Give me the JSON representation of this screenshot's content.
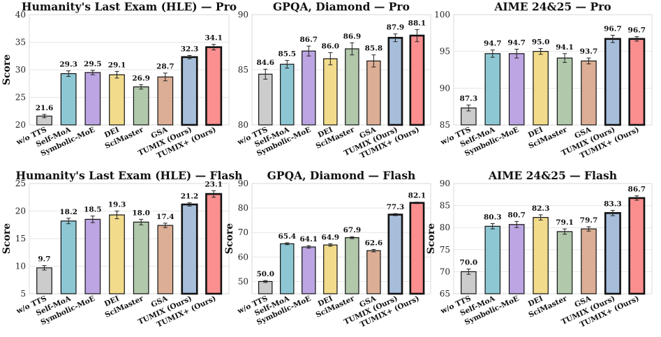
{
  "colors": {
    "w/o TTS": "#cccccc",
    "Self-MoA": "#8ec7d4",
    "Symbolic-MoE": "#bca5e2",
    "DEI": "#f2dc8c",
    "SciMaster": "#b1c8ab",
    "GSA": "#dcae95",
    "TUMIX (Ours)": "#a7bedb",
    "TUMIX+ (Ours)": "#fb8f8f"
  },
  "chart_data": [
    {
      "type": "bar",
      "title": "Humanity's Last Exam (HLE) — Pro",
      "ylabel": "Score",
      "ylim": [
        20,
        40
      ],
      "yticks": [
        20,
        25,
        30,
        35,
        40
      ],
      "categories": [
        "w/o TTS",
        "Self-MoA",
        "Symbolic-MoE",
        "DEI",
        "SciMaster",
        "GSA",
        "TUMIX (Ours)",
        "TUMIX+ (Ours)"
      ],
      "values": [
        21.6,
        29.3,
        29.5,
        29.1,
        26.9,
        28.7,
        32.3,
        34.1
      ],
      "labels": [
        "21.6",
        "29.3",
        "29.5",
        "29.1",
        "26.9",
        "28.7",
        "32.3",
        "34.1"
      ],
      "errors": [
        0.3,
        0.5,
        0.4,
        0.6,
        0.4,
        0.7,
        0.3,
        0.5
      ]
    },
    {
      "type": "bar",
      "title": "GPQA, Diamond — Pro",
      "ylabel": "",
      "ylim": [
        80,
        90
      ],
      "yticks": [
        80,
        85,
        90
      ],
      "categories": [
        "w/o TTS",
        "Self-MoA",
        "Symbolic-MoE",
        "DEI",
        "SciMaster",
        "GSA",
        "TUMIX (Ours)",
        "TUMIX+ (Ours)"
      ],
      "values": [
        84.6,
        85.5,
        86.7,
        86.0,
        86.9,
        85.8,
        87.9,
        88.1
      ],
      "labels": [
        "84.6",
        "85.5",
        "86.7",
        "86.0",
        "86.9",
        "85.8",
        "87.9",
        "88.1"
      ],
      "errors": [
        0.45,
        0.35,
        0.45,
        0.55,
        0.55,
        0.55,
        0.35,
        0.55
      ]
    },
    {
      "type": "bar",
      "title": "AIME 24&25 — Pro",
      "ylabel": "",
      "ylim": [
        85,
        100
      ],
      "yticks": [
        85,
        90,
        95,
        100
      ],
      "categories": [
        "w/o TTS",
        "Self-MoA",
        "Symbolic-MoE",
        "DEI",
        "SciMaster",
        "GSA",
        "TUMIX (Ours)",
        "TUMIX+ (Ours)"
      ],
      "values": [
        87.3,
        94.7,
        94.7,
        95.0,
        94.1,
        93.7,
        96.7,
        96.7
      ],
      "labels": [
        "87.3",
        "94.7",
        "94.7",
        "95.0",
        "94.1",
        "93.7",
        "96.7",
        "96.7"
      ],
      "errors": [
        0.4,
        0.5,
        0.6,
        0.4,
        0.6,
        0.4,
        0.5,
        0.3
      ]
    },
    {
      "type": "bar",
      "title": "Humanity's Last Exam (HLE) — Flash",
      "ylabel": "Score",
      "ylim": [
        5,
        25
      ],
      "yticks": [
        5,
        10,
        15,
        20,
        25
      ],
      "categories": [
        "w/o TTS",
        "Self-MoA",
        "Symbolic-MoE",
        "DEI",
        "SciMaster",
        "GSA",
        "TUMIX (Ours)",
        "TUMIX+ (Ours)"
      ],
      "values": [
        9.7,
        18.2,
        18.5,
        19.3,
        18.0,
        17.4,
        21.2,
        23.1
      ],
      "labels": [
        "9.7",
        "18.2",
        "18.5",
        "19.3",
        "18.0",
        "17.4",
        "21.2",
        "23.1"
      ],
      "errors": [
        0.4,
        0.5,
        0.6,
        0.7,
        0.5,
        0.4,
        0.3,
        0.6
      ]
    },
    {
      "type": "bar",
      "title": "GPQA, Diamond — Flash",
      "ylabel": "Score",
      "ylim": [
        45,
        90
      ],
      "yticks": [
        50,
        60,
        70,
        80,
        90
      ],
      "categories": [
        "w/o TTS",
        "Self-MoA",
        "Symbolic-MoE",
        "DEI",
        "SciMaster",
        "GSA",
        "TUMIX (Ours)",
        "TUMIX+ (Ours)"
      ],
      "values": [
        50.0,
        65.4,
        64.1,
        64.9,
        67.9,
        62.6,
        77.3,
        82.1
      ],
      "labels": [
        "50.0",
        "65.4",
        "64.1",
        "64.9",
        "67.9",
        "62.6",
        "77.3",
        "82.1"
      ],
      "errors": [
        0.4,
        0.4,
        0.5,
        0.5,
        0.4,
        0.5,
        0.4,
        0.3
      ]
    },
    {
      "type": "bar",
      "title": "AIME 24&25 — Flash",
      "ylabel": "Score",
      "ylim": [
        65,
        90
      ],
      "yticks": [
        65,
        70,
        75,
        80,
        85,
        90
      ],
      "categories": [
        "w/o TTS",
        "Self-MoA",
        "Symbolic-MoE",
        "DEI",
        "SciMaster",
        "GSA",
        "TUMIX (Ours)",
        "TUMIX+ (Ours)"
      ],
      "values": [
        70.0,
        80.3,
        80.7,
        82.3,
        79.1,
        79.7,
        83.3,
        86.7
      ],
      "labels": [
        "70.0",
        "80.3",
        "80.7",
        "82.3",
        "79.1",
        "79.7",
        "83.3",
        "86.7"
      ],
      "errors": [
        0.6,
        0.6,
        0.7,
        0.6,
        0.6,
        0.5,
        0.6,
        0.5
      ]
    }
  ]
}
